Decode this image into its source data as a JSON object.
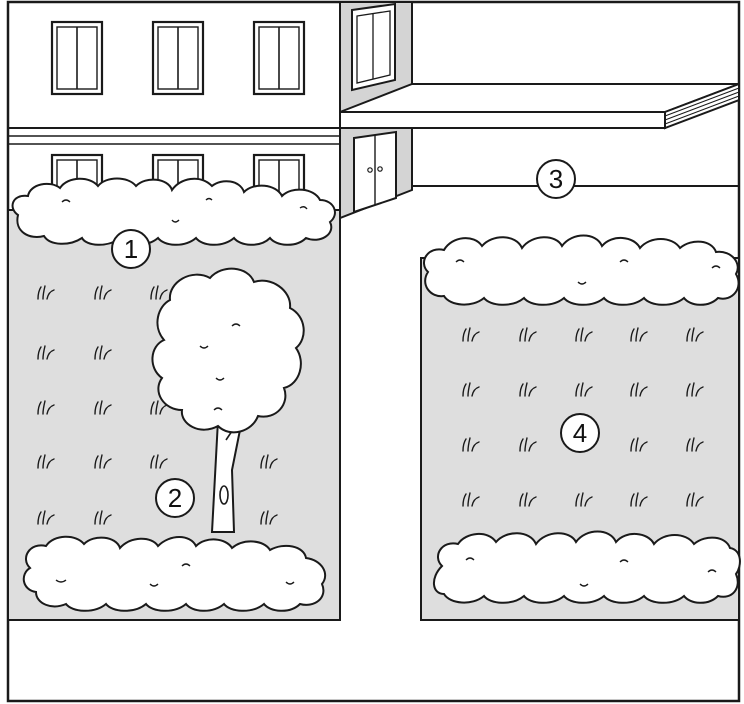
{
  "colors": {
    "line": "#1a1a1a",
    "lawn": "#dedede",
    "building_side": "#d4d4d4",
    "white": "#ffffff"
  },
  "markers": [
    {
      "id": "marker-1",
      "label": "1"
    },
    {
      "id": "marker-2",
      "label": "2"
    },
    {
      "id": "marker-3",
      "label": "3"
    },
    {
      "id": "marker-4",
      "label": "4"
    }
  ]
}
